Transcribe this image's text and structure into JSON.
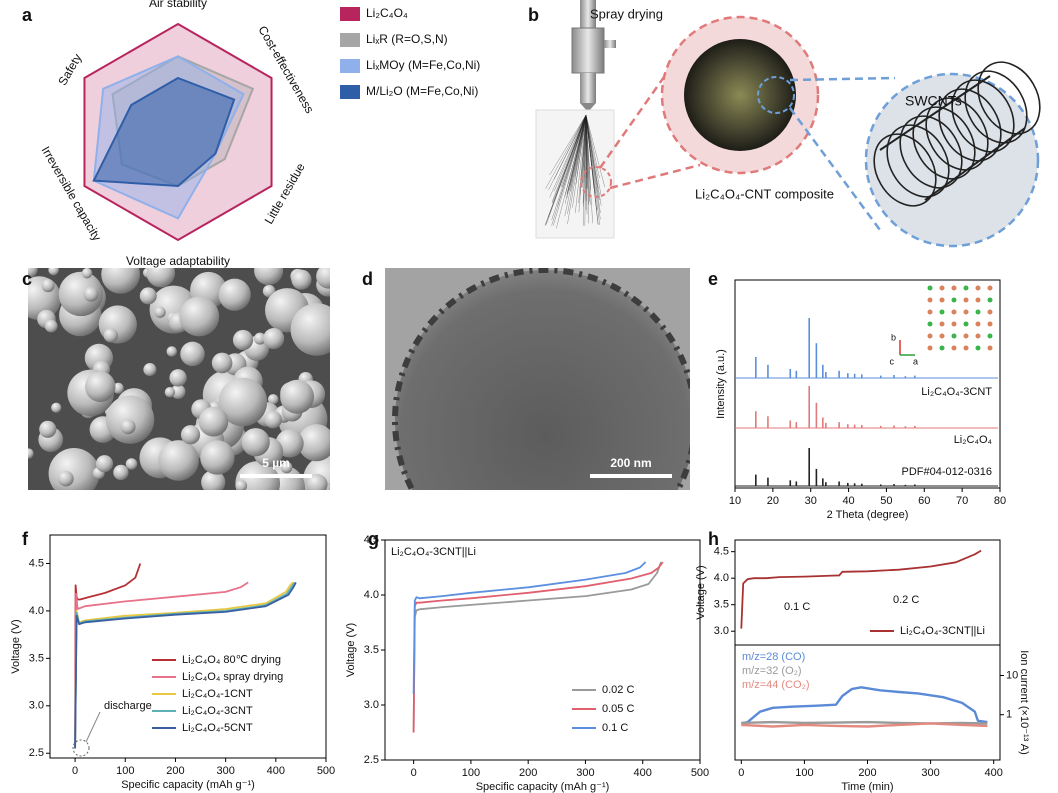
{
  "panel_labels": [
    "a",
    "b",
    "c",
    "d",
    "e",
    "f",
    "g",
    "h"
  ],
  "diagram_b": {
    "spray_label": "Spray drying",
    "composite_label": "Li₂C₄O₄-CNT composite",
    "tube_label": "SWCNTs"
  },
  "image_c": {
    "scale_bar": "5 µm"
  },
  "image_d": {
    "scale_bar": "200 nm"
  },
  "chart_data": [
    {
      "type": "radar",
      "axes": [
        "Air stability",
        "Cost-effectiveness",
        "Little residue",
        "Voltage adaptability",
        "Irreversible capacity",
        "Safety"
      ],
      "rlim": [
        0,
        5
      ],
      "legend": "right",
      "series": [
        {
          "name": "Li₂C₄O₄",
          "color": "#b8245e",
          "values": [
            5,
            5,
            5,
            5,
            5,
            5
          ]
        },
        {
          "name": "LiₓR (R=O,S,N)",
          "color": "#a6a6a6",
          "values": [
            3.5,
            4,
            2.5,
            2.5,
            3,
            3.5
          ]
        },
        {
          "name": "LiₓMOy (M=Fe,Co,Ni)",
          "color": "#8fb0ea",
          "values": [
            3.5,
            3.5,
            2,
            4,
            4.5,
            4
          ]
        },
        {
          "name": "M/Li₂O (M=Fe,Co,Ni)",
          "color": "#2f5ea8",
          "values": [
            2.5,
            3,
            2,
            2.5,
            4.5,
            2.5
          ]
        }
      ]
    },
    {
      "type": "stem",
      "xlabel": "2 Theta (degree)",
      "ylabel": "Intensity (a.u.)",
      "xlim": [
        10,
        80
      ],
      "xticks": [
        10,
        20,
        30,
        40,
        50,
        60,
        70,
        80
      ],
      "inset_axis_labels": [
        "b",
        "c",
        "a"
      ],
      "series": [
        {
          "name": "Li₂C₄O₄-3CNT",
          "color": "#5b8fd9",
          "x": [
            15.5,
            18.7,
            24.6,
            26.2,
            29.6,
            31.5,
            33.2,
            34,
            37.5,
            39.8,
            41.6,
            43.5,
            48.5,
            52,
            55,
            57.5
          ],
          "values": [
            35,
            22,
            15,
            12,
            100,
            58,
            22,
            10,
            12,
            8,
            7,
            6,
            4,
            5,
            3,
            4
          ]
        },
        {
          "name": "Li₂C₄O₄",
          "color": "#e07a7a",
          "x": [
            15.5,
            18.7,
            24.6,
            26.2,
            29.6,
            31.5,
            33.2,
            34,
            37.5,
            39.8,
            41.6,
            43.5,
            48.5,
            52,
            55,
            57.5
          ],
          "values": [
            40,
            28,
            18,
            14,
            100,
            60,
            25,
            12,
            14,
            9,
            8,
            7,
            5,
            6,
            4,
            5
          ]
        },
        {
          "name": "PDF#04-012-0316",
          "color": "#222222",
          "x": [
            15.5,
            18.7,
            24.6,
            26.2,
            29.6,
            31.5,
            33.2,
            34,
            37.5,
            39.8,
            41.6,
            43.5,
            48.5,
            52,
            55,
            57.5
          ],
          "values": [
            30,
            22,
            15,
            12,
            100,
            45,
            20,
            10,
            12,
            8,
            7,
            6,
            4,
            5,
            3,
            4
          ]
        }
      ]
    },
    {
      "type": "line",
      "xlabel": "Specific capacity (mAh g⁻¹)",
      "ylabel": "Voltage (V)",
      "xlim": [
        -50,
        500
      ],
      "xticks": [
        0,
        100,
        200,
        300,
        400,
        500
      ],
      "ylim": [
        2.45,
        4.8
      ],
      "yticks": [
        2.5,
        {
          "value": 3,
          "label": "3.0"
        },
        3.5,
        {
          "value": 4,
          "label": "4.0"
        },
        4.5
      ],
      "legend": "lower right",
      "annotations": [
        "discharge"
      ],
      "series": [
        {
          "name": "Li₂C₄O₄ 80℃ drying",
          "color": "#b83035",
          "x": [
            0,
            1,
            3,
            5,
            10,
            30,
            60,
            100,
            120,
            130
          ],
          "values": [
            2.55,
            4.27,
            4.15,
            4.12,
            4.12,
            4.15,
            4.19,
            4.27,
            4.35,
            4.5
          ]
        },
        {
          "name": "Li₂C₄O₄ spray drying",
          "color": "#e8728a",
          "x": [
            0,
            2,
            5,
            20,
            100,
            200,
            300,
            330,
            345
          ],
          "values": [
            2.55,
            4.18,
            4.02,
            4.05,
            4.1,
            4.15,
            4.2,
            4.25,
            4.3
          ]
        },
        {
          "name": "Li₂C₄O₄-1CNT",
          "color": "#e8c840",
          "x": [
            0,
            3,
            8,
            20,
            100,
            200,
            300,
            380,
            420,
            430,
            435
          ],
          "values": [
            2.55,
            4.0,
            3.88,
            3.9,
            3.95,
            3.98,
            4.02,
            4.08,
            4.2,
            4.28,
            4.3
          ]
        },
        {
          "name": "Li₂C₄O₄-3CNT",
          "color": "#5fb0b5",
          "x": [
            0,
            3,
            8,
            20,
            100,
            200,
            300,
            380,
            422,
            432,
            438
          ],
          "values": [
            2.55,
            3.98,
            3.87,
            3.89,
            3.93,
            3.97,
            4.0,
            4.06,
            4.18,
            4.26,
            4.3
          ]
        },
        {
          "name": "Li₂C₄O₄-5CNT",
          "color": "#3a5fa0",
          "x": [
            0,
            3,
            8,
            20,
            100,
            200,
            300,
            380,
            425,
            435,
            440
          ],
          "values": [
            2.55,
            3.95,
            3.86,
            3.88,
            3.92,
            3.96,
            3.99,
            4.05,
            4.17,
            4.25,
            4.3
          ]
        }
      ]
    },
    {
      "type": "line",
      "title": "Li₂C₄O₄-3CNT||Li",
      "xlabel": "Specific capacity (mAh g⁻¹)",
      "ylabel": "Voltage (V)",
      "xlim": [
        -50,
        500
      ],
      "xticks": [
        0,
        100,
        200,
        300,
        400,
        500
      ],
      "ylim": [
        2.5,
        4.5
      ],
      "yticks": [
        2.5,
        {
          "value": 3,
          "label": "3.0"
        },
        3.5,
        {
          "value": 4,
          "label": "4.0"
        },
        4.5
      ],
      "legend": "lower right",
      "series": [
        {
          "name": "0.02 C",
          "color": "#9a9a9a",
          "x": [
            0,
            2,
            5,
            10,
            50,
            100,
            200,
            300,
            380,
            410,
            425,
            432
          ],
          "values": [
            2.75,
            3.8,
            3.86,
            3.87,
            3.89,
            3.91,
            3.95,
            3.99,
            4.05,
            4.1,
            4.2,
            4.3
          ]
        },
        {
          "name": "0.05 C",
          "color": "#e06070",
          "x": [
            0,
            2,
            5,
            10,
            50,
            100,
            200,
            300,
            380,
            415,
            428,
            435
          ],
          "values": [
            2.75,
            3.9,
            3.93,
            3.93,
            3.95,
            3.97,
            4.02,
            4.08,
            4.15,
            4.2,
            4.25,
            4.3
          ]
        },
        {
          "name": "0.1 C",
          "color": "#5b8fe0",
          "x": [
            0,
            2,
            5,
            10,
            50,
            100,
            200,
            300,
            370,
            395,
            405
          ],
          "values": [
            3.1,
            3.95,
            3.98,
            3.97,
            3.99,
            4.02,
            4.07,
            4.14,
            4.2,
            4.25,
            4.3
          ]
        }
      ]
    },
    {
      "type": "line",
      "ylabel": "Voltage (V)",
      "xlim": [
        -10,
        410
      ],
      "ylim": [
        2.74,
        4.72
      ],
      "yticks": [
        {
          "value": 3,
          "label": "3.0"
        },
        3.5,
        {
          "value": 4,
          "label": "4.0"
        },
        4.5
      ],
      "legend": "lower right",
      "annotations": [
        "0.1 C",
        "0.2 C"
      ],
      "series": [
        {
          "name": "Li₂C₄O₄-3CNT||Li",
          "color": "#a83232",
          "x": [
            0,
            3,
            10,
            20,
            40,
            60,
            100,
            150,
            155,
            160,
            200,
            250,
            300,
            340,
            370,
            380
          ],
          "values": [
            3.05,
            3.9,
            3.98,
            4.0,
            4.0,
            4.02,
            4.03,
            4.05,
            4.05,
            4.12,
            4.13,
            4.16,
            4.22,
            4.3,
            4.45,
            4.52
          ]
        }
      ]
    },
    {
      "type": "line",
      "xlabel": "Time (min)",
      "ylabel": "Ion current (×10⁻¹³ A)",
      "xlim": [
        -10,
        410
      ],
      "xticks": [
        0,
        100,
        200,
        300,
        400
      ],
      "ylog": true,
      "ylim": [
        0.07,
        60
      ],
      "yticks": [
        1,
        10
      ],
      "legend": "upper left",
      "series": [
        {
          "name": "m/z=28 (CO)",
          "color": "#5b8ad6",
          "x": [
            0,
            10,
            30,
            50,
            80,
            120,
            150,
            160,
            175,
            190,
            220,
            250,
            280,
            320,
            350,
            370,
            375,
            390
          ],
          "values": [
            0.6,
            0.65,
            1.2,
            1.5,
            1.6,
            1.7,
            1.8,
            3,
            4.5,
            5,
            4.2,
            3.8,
            3.5,
            2.8,
            2,
            1.2,
            0.7,
            0.65
          ]
        },
        {
          "name": "m/z=32 (O₂)",
          "color": "#9a9a9a",
          "x": [
            0,
            50,
            100,
            150,
            200,
            250,
            300,
            350,
            390
          ],
          "values": [
            0.62,
            0.65,
            0.62,
            0.63,
            0.65,
            0.62,
            0.6,
            0.62,
            0.6
          ]
        },
        {
          "name": "m/z=44 (CO₂)",
          "color": "#e38a80",
          "x": [
            0,
            50,
            100,
            150,
            200,
            250,
            300,
            350,
            390
          ],
          "values": [
            0.55,
            0.5,
            0.55,
            0.52,
            0.5,
            0.55,
            0.6,
            0.55,
            0.52
          ]
        }
      ]
    }
  ]
}
